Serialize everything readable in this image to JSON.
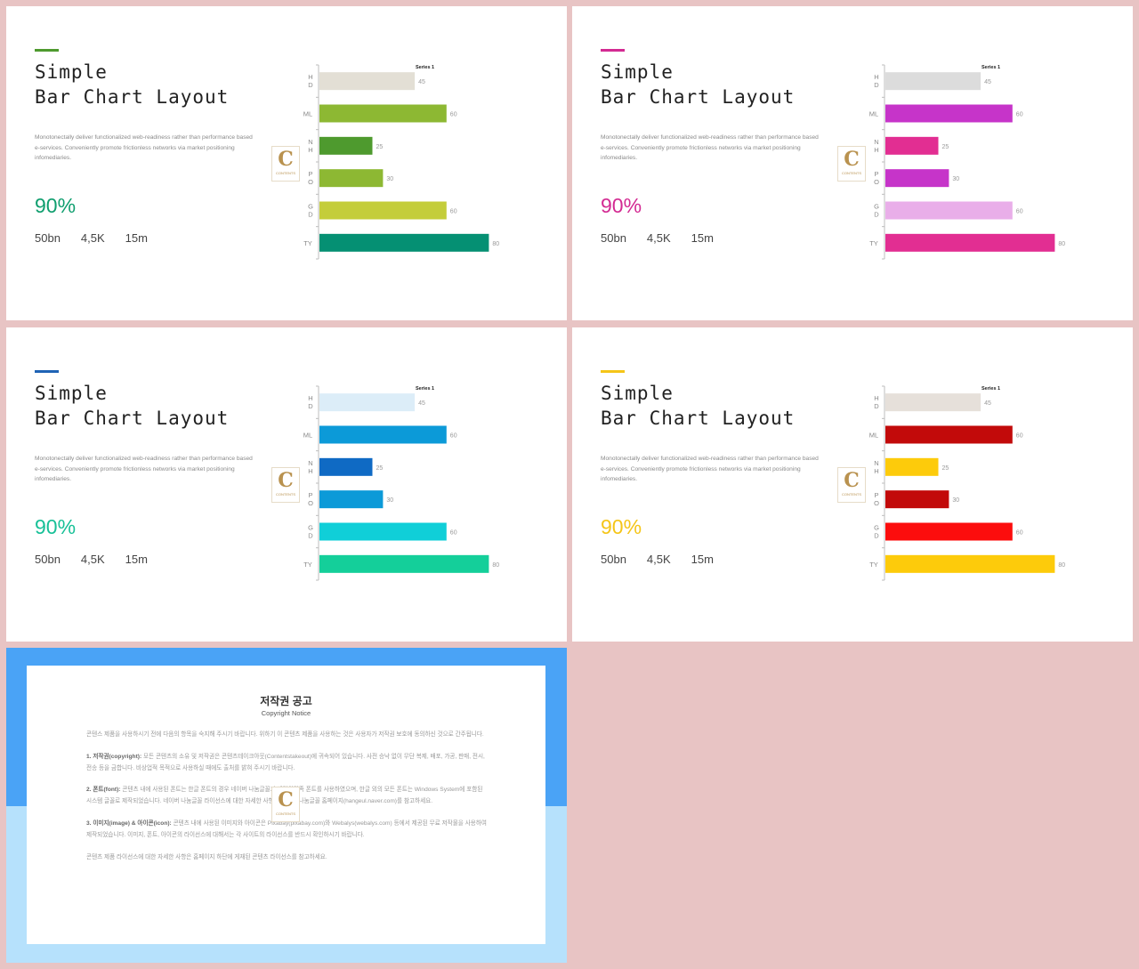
{
  "slides": [
    {
      "id": "green",
      "title_line1": "Simple",
      "title_line2": "Bar Chart Layout",
      "description": "Monotonectally deliver functionalized web-readiness rather than performance based e-services. Conveniently promote frictionless networks via market positioning infomediaries.",
      "big_percent": "90%",
      "stats": [
        "50bn",
        "4,5K",
        "15m"
      ],
      "accent_color": "#4e9a2e",
      "percent_color": "#0f9e6e",
      "bar_colors": [
        "#e3dfd5",
        "#8db833",
        "#4e9a2e",
        "#8db833",
        "#c4cd3a",
        "#059073"
      ]
    },
    {
      "id": "pink",
      "title_line1": "Simple",
      "title_line2": "Bar Chart Layout",
      "description": "Monotonectally deliver functionalized web-readiness rather than performance based e-services. Conveniently promote frictionless networks via market positioning infomediaries.",
      "big_percent": "90%",
      "stats": [
        "50bn",
        "4,5K",
        "15m"
      ],
      "accent_color": "#d32a92",
      "percent_color": "#d32a92",
      "bar_colors": [
        "#dcdcdc",
        "#c634c9",
        "#e22e92",
        "#c634c9",
        "#e9aee9",
        "#e22e92"
      ]
    },
    {
      "id": "blue",
      "title_line1": "Simple",
      "title_line2": "Bar Chart Layout",
      "description": "Monotonectally deliver functionalized web-readiness rather than performance based e-services. Conveniently promote frictionless networks via market positioning infomediaries.",
      "big_percent": "90%",
      "stats": [
        "50bn",
        "4,5K",
        "15m"
      ],
      "accent_color": "#1f63b5",
      "percent_color": "#17c097",
      "bar_colors": [
        "#dcedf8",
        "#0c9ad8",
        "#0f6ac4",
        "#0c9ad8",
        "#10cfd8",
        "#14cf9a"
      ]
    },
    {
      "id": "red",
      "title_line1": "Simple",
      "title_line2": "Bar Chart Layout",
      "description": "Monotonectally deliver functionalized web-readiness rather than performance based e-services. Conveniently promote frictionless networks via market positioning infomediaries.",
      "big_percent": "90%",
      "stats": [
        "50bn",
        "4,5K",
        "15m"
      ],
      "accent_color": "#f5c518",
      "percent_color": "#f5c518",
      "bar_colors": [
        "#e6e0da",
        "#c20a0a",
        "#fdcb0b",
        "#c20a0a",
        "#fc0d0d",
        "#fdcb0b"
      ]
    }
  ],
  "chart_data": [
    {
      "type": "bar",
      "orientation": "horizontal",
      "categories": [
        "HD",
        "ML",
        "NH",
        "PO",
        "GD",
        "TY"
      ],
      "series": [
        {
          "name": "Series 1",
          "values": [
            45,
            60,
            25,
            30,
            60,
            80
          ]
        }
      ],
      "xlim": [
        0,
        100
      ]
    },
    {
      "type": "bar",
      "orientation": "horizontal",
      "categories": [
        "HD",
        "ML",
        "NH",
        "PO",
        "GD",
        "TY"
      ],
      "series": [
        {
          "name": "Series 1",
          "values": [
            45,
            60,
            25,
            30,
            60,
            80
          ]
        }
      ],
      "xlim": [
        0,
        100
      ]
    },
    {
      "type": "bar",
      "orientation": "horizontal",
      "categories": [
        "HD",
        "ML",
        "NH",
        "PO",
        "GD",
        "TY"
      ],
      "series": [
        {
          "name": "Series 1",
          "values": [
            45,
            60,
            25,
            30,
            60,
            80
          ]
        }
      ],
      "xlim": [
        0,
        100
      ]
    },
    {
      "type": "bar",
      "orientation": "horizontal",
      "categories": [
        "HD",
        "ML",
        "NH",
        "PO",
        "GD",
        "TY"
      ],
      "series": [
        {
          "name": "Series 1",
          "values": [
            45,
            60,
            25,
            30,
            60,
            80
          ]
        }
      ],
      "xlim": [
        0,
        100
      ]
    }
  ],
  "logo": {
    "letter": "C",
    "text": "CONTENTS"
  },
  "notice": {
    "title": "저작권 공고",
    "subtitle": "Copyright Notice",
    "intro": "콘텐스 제품을 사용하시기 전에 다음의 항목을 숙지해 주시기 바랍니다. 위하기 이 콘텐츠 제품을 사용하는 것은 사용자가 저작권 보호에 동의하신 것으로 간주됩니다.",
    "p1_label": "1. 저작권(copyright):",
    "p1_text": " 모든 콘텐츠의 소유 및 저작권은 콘텐츠테이크아웃(Contentstakeout)에 귀속되어 있습니다. 사전 승낙 없이 무단 복제, 배포, 가공, 판매, 전시, 전송 등을 금합니다. 비상업적 목적으로 사용하실 때에도 출처를 밝혀 주시기 바랍니다.",
    "p2_label": "2. 폰트(font):",
    "p2_text": " 콘텐츠 내에 사용된 폰트는 한글 폰트의 경우 네이버 나눔글꼴과 배달의민족 폰트를 사용하였으며, 한글 외의 모든 폰트는 Windows System에 포함된 시스템 글꼴로 제작되었습니다. 네이버 나눔글꼴 라이선스에 대한 자세한 사항은 네이버 나눔글꼴 홈페이지(hangeul.naver.com)를 참고하세요.",
    "p3_label": "3. 이미지(image) & 아이콘(icon):",
    "p3_text": " 콘텐츠 내에 사용된 이미지와 아이콘은 Pixabay(pixabay.com)와 Webalys(webalys.com) 등에서 제공된 무료 저작물을 사용하여 제작되었습니다. 이미지, 폰트, 아이콘의 라이선스에 대해서는 각 사이트의 라이선스를 반드시 확인하시기 바랍니다.",
    "closing": "콘텐츠 제품 라이선스에 대한 자세한 사항은 홈페이지 하단에 게재된 콘텐츠 라이선스를 참고하세요."
  }
}
